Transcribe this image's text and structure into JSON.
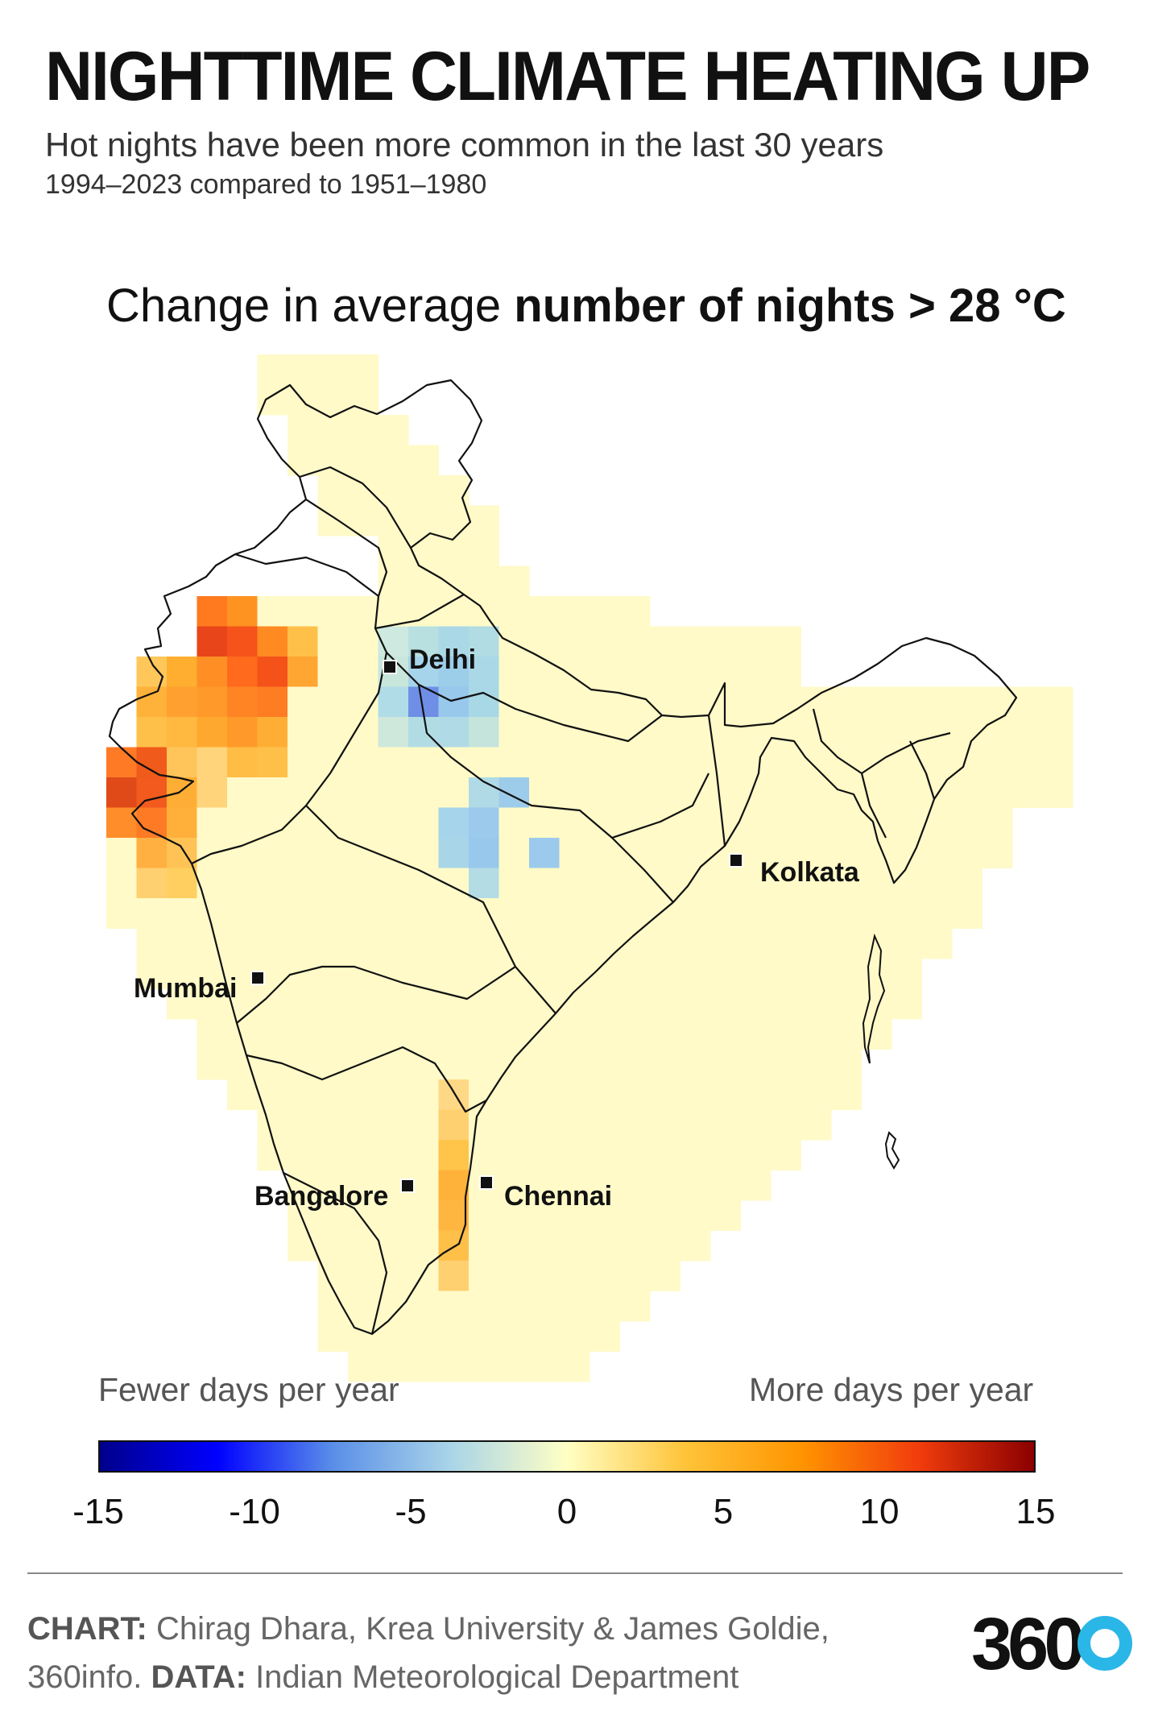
{
  "header": {
    "title": "NIGHTTIME CLIMATE HEATING UP",
    "subtitle": "Hot nights have been more common in the last 30 years",
    "period": "1994–2023 compared to 1951–1980"
  },
  "chart_heading": {
    "prefix": "Change in average ",
    "emphasis": "number of nights > 28 °C"
  },
  "cities": [
    "Delhi",
    "Kolkata",
    "Mumbai",
    "Bangalore",
    "Chennai"
  ],
  "legend": {
    "left_note": "Fewer days per year",
    "right_note": "More days per year",
    "ticks": [
      "-15",
      "-10",
      "-5",
      "0",
      "5",
      "10",
      "15"
    ],
    "colors": [
      "#00008b",
      "#0000ff",
      "#5a8fe8",
      "#a9d4e8",
      "#ffffc4",
      "#ffc43a",
      "#ff9500",
      "#f23d0d",
      "#8b0000"
    ]
  },
  "footer": {
    "chart_label": "CHART:",
    "chart_credit": " Chirag Dhara, Krea University & James Goldie,",
    "line2_prefix": "360info. ",
    "data_label": "DATA:",
    "data_credit": " Indian Meteorological Department"
  },
  "logo_text": "360",
  "colors": {
    "boundary": "#111111",
    "land": "#fffac8"
  }
}
